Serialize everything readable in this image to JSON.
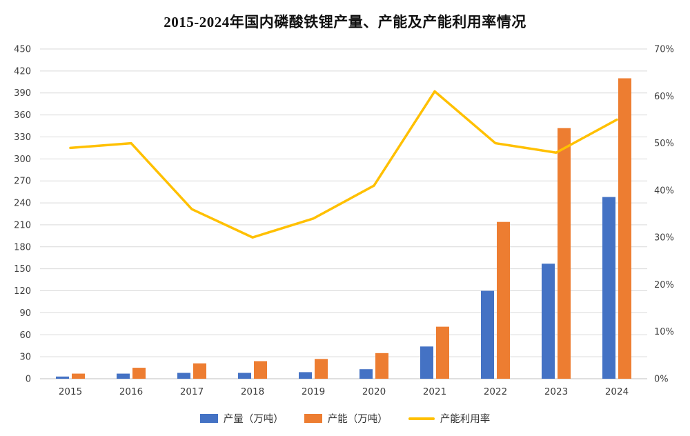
{
  "chart_data": {
    "type": "bar",
    "combo": "bar+line",
    "title": "2015-2024年国内磷酸铁锂产量、产能及产能利用率情况",
    "categories": [
      "2015",
      "2016",
      "2017",
      "2018",
      "2019",
      "2020",
      "2021",
      "2022",
      "2023",
      "2024"
    ],
    "series": [
      {
        "name": "产量（万吨）",
        "kind": "bar",
        "axis": "left",
        "color": "#4472C4",
        "values": [
          3,
          7,
          8,
          8,
          9,
          13,
          44,
          120,
          157,
          248
        ]
      },
      {
        "name": "产能（万吨）",
        "kind": "bar",
        "axis": "left",
        "color": "#ED7D31",
        "values": [
          7,
          15,
          21,
          24,
          27,
          35,
          71,
          214,
          342,
          410
        ]
      },
      {
        "name": "产能利用率",
        "kind": "line",
        "axis": "right",
        "color": "#FFC000",
        "values": [
          49,
          50,
          36,
          30,
          34,
          41,
          61,
          50,
          48,
          55
        ]
      }
    ],
    "left_axis": {
      "min": 0,
      "max": 450,
      "step": 30,
      "tick_labels": [
        "0",
        "30",
        "60",
        "90",
        "120",
        "150",
        "180",
        "210",
        "240",
        "270",
        "300",
        "330",
        "360",
        "390",
        "420",
        "450"
      ]
    },
    "right_axis": {
      "min": 0,
      "max": 70,
      "step": 10,
      "tick_labels": [
        "0%",
        "10%",
        "20%",
        "30%",
        "40%",
        "50%",
        "60%",
        "70%"
      ]
    },
    "grid": true,
    "legend_position": "bottom",
    "colors": {
      "grid": "#d9d9d9",
      "baseline": "#bfbfbf",
      "background": "#ffffff"
    }
  }
}
